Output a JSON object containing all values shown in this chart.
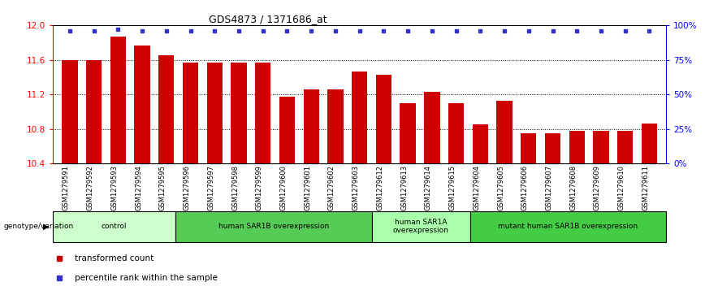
{
  "title": "GDS4873 / 1371686_at",
  "samples": [
    "GSM1279591",
    "GSM1279592",
    "GSM1279593",
    "GSM1279594",
    "GSM1279595",
    "GSM1279596",
    "GSM1279597",
    "GSM1279598",
    "GSM1279599",
    "GSM1279600",
    "GSM1279601",
    "GSM1279602",
    "GSM1279603",
    "GSM1279612",
    "GSM1279613",
    "GSM1279614",
    "GSM1279615",
    "GSM1279604",
    "GSM1279605",
    "GSM1279606",
    "GSM1279607",
    "GSM1279608",
    "GSM1279609",
    "GSM1279610",
    "GSM1279611"
  ],
  "bar_values": [
    11.6,
    11.6,
    11.87,
    11.76,
    11.65,
    11.57,
    11.57,
    11.57,
    11.57,
    11.17,
    11.26,
    11.26,
    11.46,
    11.43,
    11.1,
    11.23,
    11.1,
    10.85,
    11.13,
    10.75,
    10.75,
    10.78,
    10.78,
    10.78,
    10.86
  ],
  "percentile_values": [
    96,
    96,
    97,
    96,
    96,
    96,
    96,
    96,
    96,
    96,
    96,
    96,
    96,
    96,
    96,
    96,
    96,
    96,
    96,
    96,
    96,
    96,
    96,
    96,
    96
  ],
  "ylim": [
    10.4,
    12.0
  ],
  "yticks": [
    10.4,
    10.8,
    11.2,
    11.6,
    12.0
  ],
  "y2ticks": [
    0,
    25,
    50,
    75,
    100
  ],
  "bar_color": "#cc0000",
  "dot_color": "#3333cc",
  "hline_values": [
    10.8,
    11.2,
    11.6
  ],
  "groups": [
    {
      "label": "control",
      "start": 0,
      "end": 5,
      "color": "#ccffcc"
    },
    {
      "label": "human SAR1B overexpression",
      "start": 5,
      "end": 13,
      "color": "#55cc55"
    },
    {
      "label": "human SAR1A\noverexpression",
      "start": 13,
      "end": 17,
      "color": "#aaffaa"
    },
    {
      "label": "mutant human SAR1B overexpression",
      "start": 17,
      "end": 25,
      "color": "#44cc44"
    }
  ],
  "legend_items": [
    {
      "color": "#cc0000",
      "label": "transformed count"
    },
    {
      "color": "#3333cc",
      "label": "percentile rank within the sample"
    }
  ],
  "genotype_label": "genotype/variation"
}
